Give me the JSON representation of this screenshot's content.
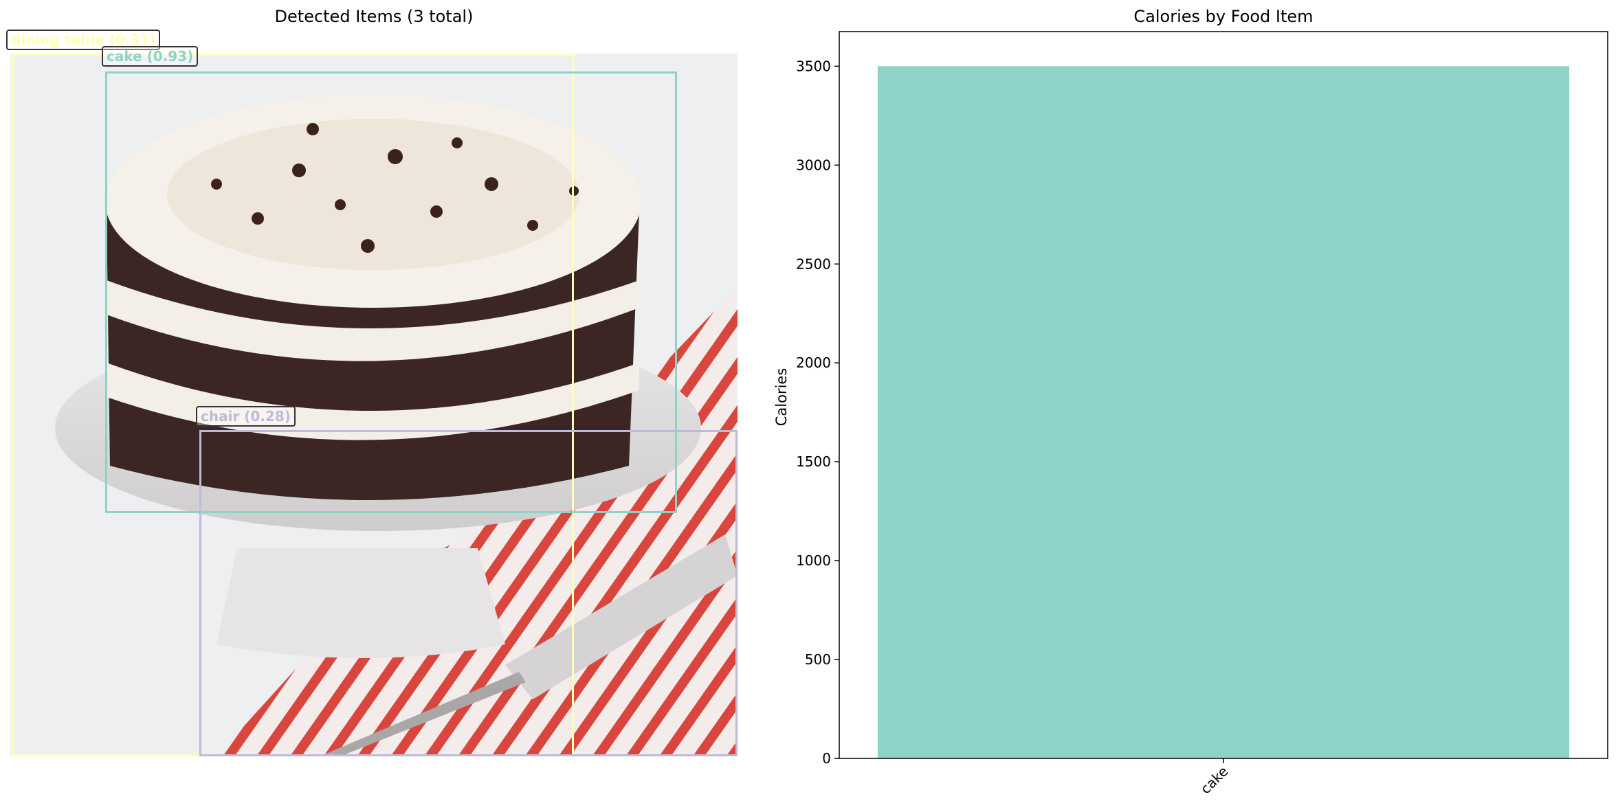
{
  "left_panel": {
    "title": "Detected Items (3 total)",
    "detections": [
      {
        "label": "dining table (0.31)",
        "color": "#ffffb3"
      },
      {
        "label": "cake (0.93)",
        "color": "#8dd3c7"
      },
      {
        "label": "chair (0.28)",
        "color": "#bebada"
      }
    ]
  },
  "chart_data": {
    "type": "bar",
    "title": "Calories by Food Item",
    "xlabel": "",
    "ylabel": "Calories",
    "categories": [
      "cake"
    ],
    "values": [
      3500
    ],
    "ylim": [
      0,
      3675
    ],
    "yticks": [
      0,
      500,
      1000,
      1500,
      2000,
      2500,
      3000,
      3500
    ],
    "bar_color": "#8dd3c7",
    "grid": false
  }
}
